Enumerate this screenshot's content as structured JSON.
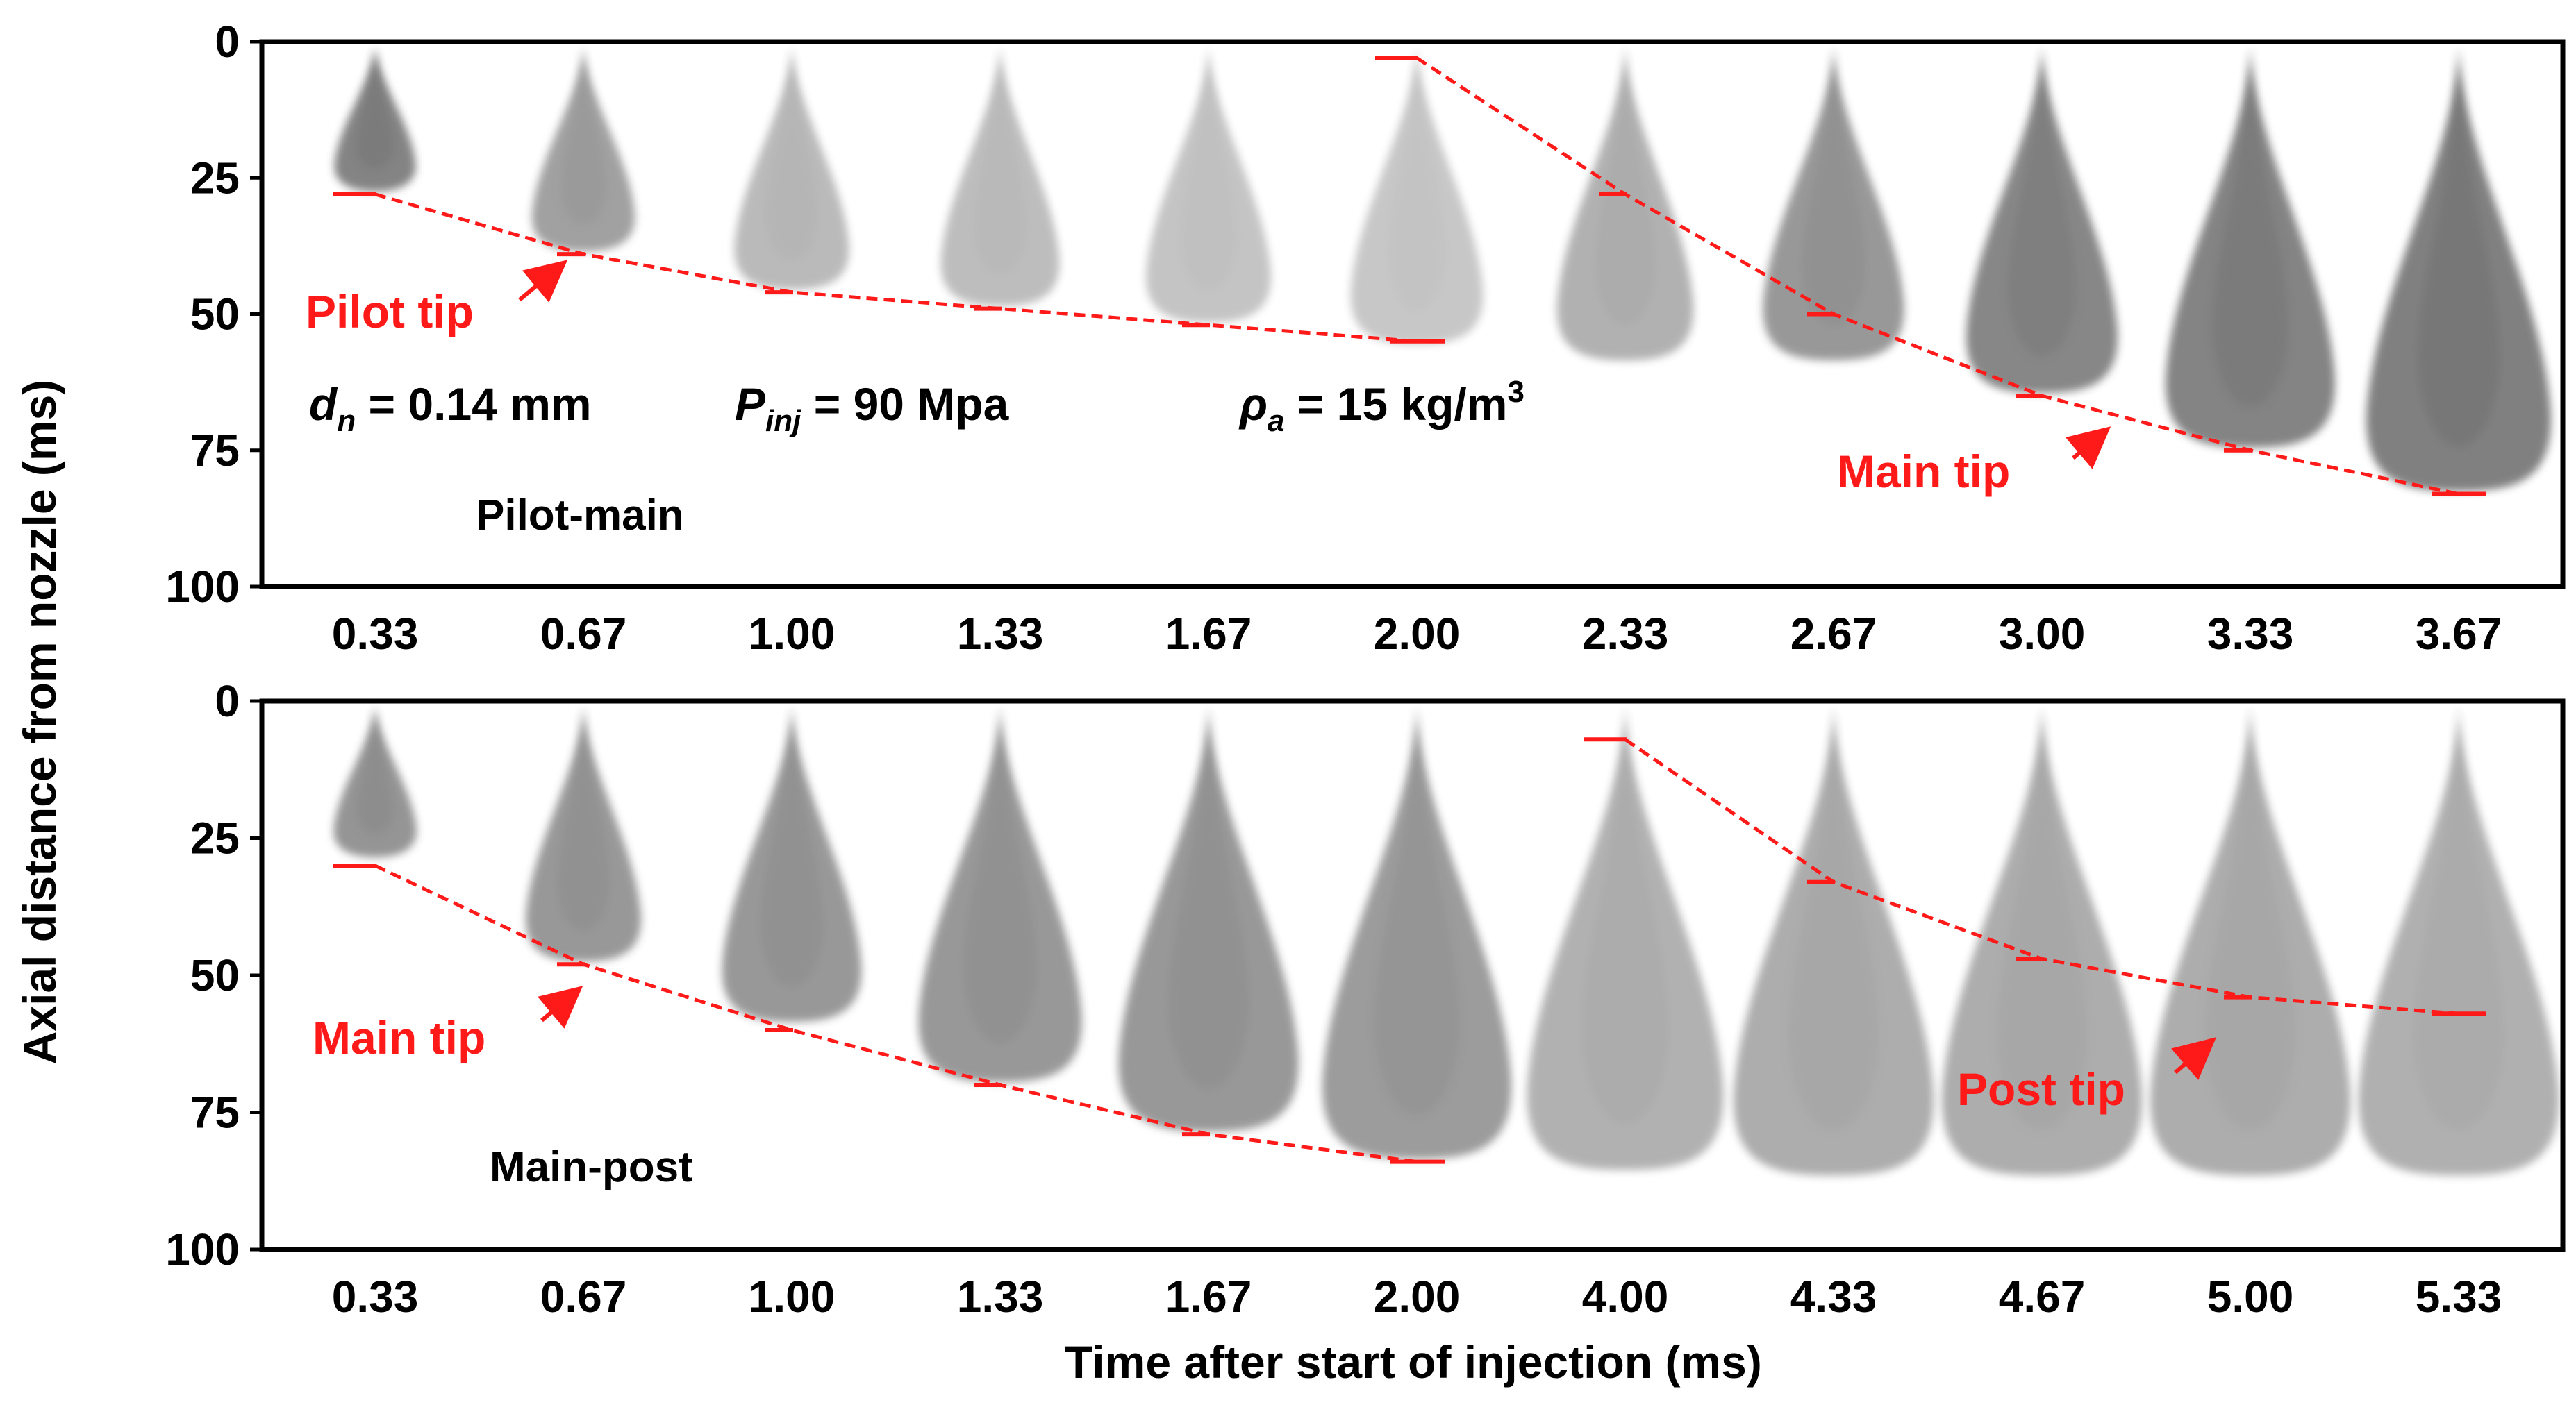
{
  "chart_data": [
    {
      "type": "line",
      "panel": "top",
      "label": "Pilot-main",
      "ylabel": "Axial distance from nozzle  (ms)",
      "xlabel": "Time after start of injection  (ms)",
      "ylim": [
        0,
        100
      ],
      "yticks": [
        "0",
        "25",
        "50",
        "75",
        "100"
      ],
      "categories": [
        "0.33",
        "0.67",
        "1.00",
        "1.33",
        "1.67",
        "2.00",
        "2.33",
        "2.67",
        "3.00",
        "3.33",
        "3.67"
      ],
      "series": [
        {
          "name": "Pilot tip",
          "values": [
            28,
            39,
            46,
            49,
            52,
            55,
            null,
            null,
            null,
            null,
            null
          ]
        },
        {
          "name": "Main tip",
          "values": [
            null,
            null,
            null,
            null,
            null,
            3,
            28,
            50,
            65,
            75,
            83
          ]
        }
      ],
      "annotations": [
        "Pilot tip",
        "Main tip"
      ],
      "sprays": [
        {
          "tip": 27,
          "width": 1.0,
          "shade": 0.72
        },
        {
          "tip": 38,
          "width": 1.15,
          "shade": 0.55
        },
        {
          "tip": 45,
          "width": 1.2,
          "shade": 0.4
        },
        {
          "tip": 48,
          "width": 1.2,
          "shade": 0.38
        },
        {
          "tip": 51,
          "width": 1.25,
          "shade": 0.34
        },
        {
          "tip": 55,
          "width": 1.3,
          "shade": 0.32
        },
        {
          "tip": 58,
          "width": 1.3,
          "shade": 0.45
        },
        {
          "tip": 58,
          "width": 1.4,
          "shade": 0.6
        },
        {
          "tip": 64,
          "width": 1.45,
          "shade": 0.7
        },
        {
          "tip": 74,
          "width": 1.55,
          "shade": 0.72
        },
        {
          "tip": 82,
          "width": 1.65,
          "shade": 0.74
        }
      ]
    },
    {
      "type": "line",
      "panel": "bottom",
      "label": "Main-post",
      "ylabel": "Axial distance from nozzle  (ms)",
      "xlabel": "Time after start of injection  (ms)",
      "ylim": [
        0,
        100
      ],
      "yticks": [
        "0",
        "25",
        "50",
        "75",
        "100"
      ],
      "categories": [
        "0.33",
        "0.67",
        "1.00",
        "1.33",
        "1.67",
        "2.00",
        "4.00",
        "4.33",
        "4.67",
        "5.00",
        "5.33"
      ],
      "series": [
        {
          "name": "Main tip",
          "values": [
            30,
            48,
            60,
            70,
            79,
            84,
            null,
            null,
            null,
            null,
            null
          ]
        },
        {
          "name": "Post tip",
          "values": [
            null,
            null,
            null,
            null,
            null,
            null,
            7,
            33,
            47,
            54,
            57
          ]
        }
      ],
      "annotations": [
        "Main tip",
        "Post tip"
      ],
      "sprays": [
        {
          "tip": 28,
          "width": 1.0,
          "shade": 0.62
        },
        {
          "tip": 47,
          "width": 1.15,
          "shade": 0.6
        },
        {
          "tip": 58,
          "width": 1.35,
          "shade": 0.6
        },
        {
          "tip": 69,
          "width": 1.55,
          "shade": 0.6
        },
        {
          "tip": 78,
          "width": 1.65,
          "shade": 0.6
        },
        {
          "tip": 83,
          "width": 1.7,
          "shade": 0.58
        },
        {
          "tip": 85,
          "width": 1.8,
          "shade": 0.45
        },
        {
          "tip": 86,
          "width": 1.85,
          "shade": 0.48
        },
        {
          "tip": 86,
          "width": 1.85,
          "shade": 0.48
        },
        {
          "tip": 86,
          "width": 1.85,
          "shade": 0.48
        },
        {
          "tip": 86,
          "width": 1.85,
          "shade": 0.46
        }
      ]
    }
  ],
  "conditions": {
    "dn_symbol": "d",
    "dn_sub": "n",
    "dn_value": " = 0.14 mm",
    "pinj_symbol": "P",
    "pinj_sub": "inj",
    "pinj_value": " = 90 Mpa",
    "rho_symbol": "ρ",
    "rho_sub": "a",
    "rho_value": " = 15 kg/m",
    "rho_sup": "3"
  },
  "colors": {
    "tip_line": "#ff1a1a",
    "axis": "#000000",
    "spray": "#555555"
  }
}
